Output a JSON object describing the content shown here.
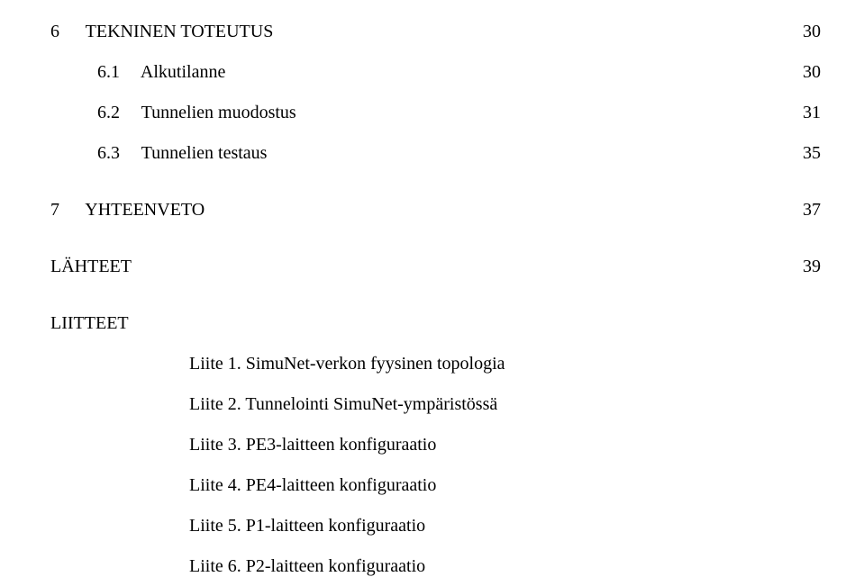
{
  "toc": {
    "section6": {
      "number": "6",
      "title": "TEKNINEN TOTEUTUS",
      "page": "30",
      "items": [
        {
          "number": "6.1",
          "title": "Alkutilanne",
          "page": "30"
        },
        {
          "number": "6.2",
          "title": "Tunnelien muodostus",
          "page": "31"
        },
        {
          "number": "6.3",
          "title": "Tunnelien testaus",
          "page": "35"
        }
      ]
    },
    "section7": {
      "number": "7",
      "title": "YHTEENVETO",
      "page": "37"
    },
    "lahteet": {
      "title": "LÄHTEET",
      "page": "39"
    },
    "liitteet": {
      "title": "LIITTEET",
      "items": [
        {
          "label": "Liite 1.",
          "text": "SimuNet-verkon fyysinen topologia"
        },
        {
          "label": "Liite 2.",
          "text": "Tunnelointi SimuNet-ympäristössä"
        },
        {
          "label": "Liite 3.",
          "text": "PE3-laitteen konfiguraatio"
        },
        {
          "label": "Liite 4.",
          "text": "PE4-laitteen konfiguraatio"
        },
        {
          "label": "Liite 5.",
          "text": "P1-laitteen konfiguraatio"
        },
        {
          "label": "Liite 6.",
          "text": "P2-laitteen konfiguraatio"
        }
      ]
    }
  },
  "style": {
    "font_family": "Times New Roman",
    "font_size_pt": 15,
    "text_color": "#000000",
    "background_color": "#ffffff"
  }
}
